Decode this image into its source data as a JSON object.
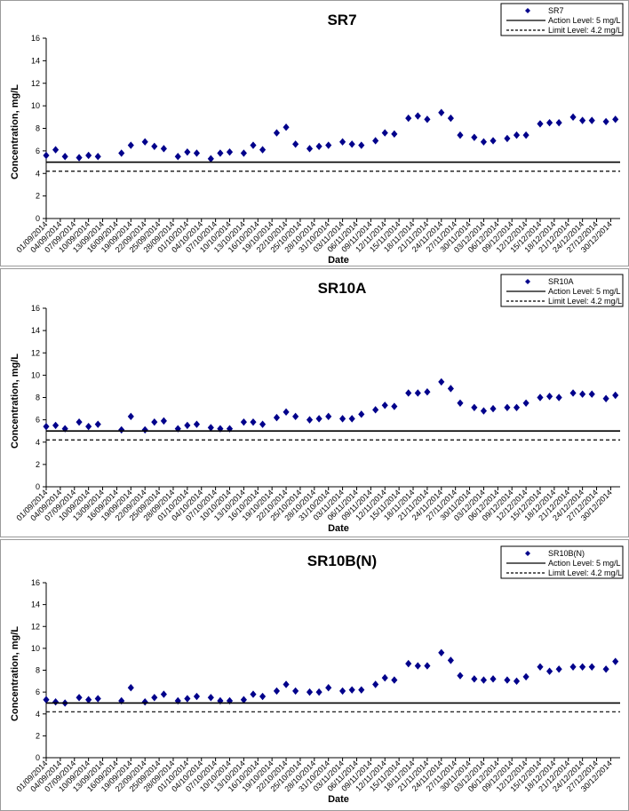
{
  "chart_data": [
    {
      "type": "scatter",
      "title": "SR7",
      "xlabel": "Date",
      "ylabel": "Concentration, mg/L",
      "ylim": [
        0,
        16
      ],
      "yticks": [
        "0",
        "2",
        "4",
        "6",
        "8",
        "10",
        "12",
        "14",
        "16"
      ],
      "xlim": [
        "01/09/2014",
        "01/01/2015"
      ],
      "xticks": [
        "01/09/2014",
        "04/09/2014",
        "07/09/2014",
        "10/09/2014",
        "13/09/2014",
        "16/09/2014",
        "19/09/2014",
        "22/09/2014",
        "25/09/2014",
        "28/09/2014",
        "01/10/2014",
        "04/10/2014",
        "07/10/2014",
        "10/10/2014",
        "13/10/2014",
        "16/10/2014",
        "19/10/2014",
        "22/10/2014",
        "25/10/2014",
        "28/10/2014",
        "31/10/2014",
        "03/11/2014",
        "06/11/2014",
        "09/11/2014",
        "12/11/2014",
        "15/11/2014",
        "18/11/2014",
        "21/11/2014",
        "24/11/2014",
        "27/11/2014",
        "30/11/2014",
        "03/12/2014",
        "06/12/2014",
        "09/12/2014",
        "12/12/2014",
        "15/12/2014",
        "18/12/2014",
        "21/12/2014",
        "24/12/2014",
        "27/12/2014",
        "30/12/2014"
      ],
      "grid": false,
      "legend_position": "top-right",
      "series": [
        {
          "name": "SR7",
          "kind": "scatter",
          "color": "#00008b",
          "marker": "diamond",
          "x": [
            "01/09/2014",
            "03/09/2014",
            "05/09/2014",
            "08/09/2014",
            "10/09/2014",
            "12/09/2014",
            "17/09/2014",
            "19/09/2014",
            "22/09/2014",
            "24/09/2014",
            "26/09/2014",
            "29/09/2014",
            "01/10/2014",
            "03/10/2014",
            "06/10/2014",
            "08/10/2014",
            "10/10/2014",
            "13/10/2014",
            "15/10/2014",
            "17/10/2014",
            "20/10/2014",
            "22/10/2014",
            "24/10/2014",
            "27/10/2014",
            "29/10/2014",
            "31/10/2014",
            "03/11/2014",
            "05/11/2014",
            "07/11/2014",
            "10/11/2014",
            "12/11/2014",
            "14/11/2014",
            "17/11/2014",
            "19/11/2014",
            "21/11/2014",
            "24/11/2014",
            "26/11/2014",
            "28/11/2014",
            "01/12/2014",
            "03/12/2014",
            "05/12/2014",
            "08/12/2014",
            "10/12/2014",
            "12/12/2014",
            "15/12/2014",
            "17/12/2014",
            "19/12/2014",
            "22/12/2014",
            "24/12/2014",
            "26/12/2014",
            "29/12/2014",
            "31/12/2014"
          ],
          "y": [
            5.6,
            6.1,
            5.5,
            5.4,
            5.6,
            5.5,
            5.8,
            6.5,
            6.8,
            6.4,
            6.2,
            5.5,
            5.9,
            5.8,
            5.3,
            5.8,
            5.9,
            5.8,
            6.5,
            6.1,
            7.6,
            8.1,
            6.6,
            6.2,
            6.4,
            6.5,
            6.8,
            6.6,
            6.5,
            6.9,
            7.6,
            7.5,
            8.9,
            9.1,
            8.8,
            9.4,
            8.9,
            7.4,
            7.2,
            6.8,
            6.9,
            7.1,
            7.4,
            7.4,
            8.4,
            8.5,
            8.5,
            9.0,
            8.7,
            8.7,
            8.6,
            8.8
          ]
        },
        {
          "name": "Action Level: 5 mg/L",
          "kind": "line",
          "style": "solid",
          "color": "#000000",
          "value": 5
        },
        {
          "name": "Limit Level: 4.2 mg/L",
          "kind": "line",
          "style": "dashed",
          "color": "#000000",
          "value": 4.2
        }
      ]
    },
    {
      "type": "scatter",
      "title": "SR10A",
      "xlabel": "Date",
      "ylabel": "Concentration, mg/L",
      "ylim": [
        0,
        16
      ],
      "yticks": [
        "0",
        "2",
        "4",
        "6",
        "8",
        "10",
        "12",
        "14",
        "16"
      ],
      "xlim": [
        "01/09/2014",
        "01/01/2015"
      ],
      "xticks": [
        "01/09/2014",
        "04/09/2014",
        "07/09/2014",
        "10/09/2014",
        "13/09/2014",
        "16/09/2014",
        "19/09/2014",
        "22/09/2014",
        "25/09/2014",
        "28/09/2014",
        "01/10/2014",
        "04/10/2014",
        "07/10/2014",
        "10/10/2014",
        "13/10/2014",
        "16/10/2014",
        "19/10/2014",
        "22/10/2014",
        "25/10/2014",
        "28/10/2014",
        "31/10/2014",
        "03/11/2014",
        "06/11/2014",
        "09/11/2014",
        "12/11/2014",
        "15/11/2014",
        "18/11/2014",
        "21/11/2014",
        "24/11/2014",
        "27/11/2014",
        "30/11/2014",
        "03/12/2014",
        "06/12/2014",
        "09/12/2014",
        "12/12/2014",
        "15/12/2014",
        "18/12/2014",
        "21/12/2014",
        "24/12/2014",
        "27/12/2014",
        "30/12/2014"
      ],
      "grid": false,
      "legend_position": "top-right",
      "series": [
        {
          "name": "SR10A",
          "kind": "scatter",
          "color": "#00008b",
          "marker": "diamond",
          "x": [
            "01/09/2014",
            "03/09/2014",
            "05/09/2014",
            "08/09/2014",
            "10/09/2014",
            "12/09/2014",
            "17/09/2014",
            "19/09/2014",
            "22/09/2014",
            "24/09/2014",
            "26/09/2014",
            "29/09/2014",
            "01/10/2014",
            "03/10/2014",
            "06/10/2014",
            "08/10/2014",
            "10/10/2014",
            "13/10/2014",
            "15/10/2014",
            "17/10/2014",
            "20/10/2014",
            "22/10/2014",
            "24/10/2014",
            "27/10/2014",
            "29/10/2014",
            "31/10/2014",
            "03/11/2014",
            "05/11/2014",
            "07/11/2014",
            "10/11/2014",
            "12/11/2014",
            "14/11/2014",
            "17/11/2014",
            "19/11/2014",
            "21/11/2014",
            "24/11/2014",
            "26/11/2014",
            "28/11/2014",
            "01/12/2014",
            "03/12/2014",
            "05/12/2014",
            "08/12/2014",
            "10/12/2014",
            "12/12/2014",
            "15/12/2014",
            "17/12/2014",
            "19/12/2014",
            "22/12/2014",
            "24/12/2014",
            "26/12/2014",
            "29/12/2014",
            "31/12/2014"
          ],
          "y": [
            5.4,
            5.5,
            5.2,
            5.8,
            5.4,
            5.6,
            5.1,
            6.3,
            5.1,
            5.8,
            5.9,
            5.2,
            5.5,
            5.6,
            5.3,
            5.2,
            5.2,
            5.8,
            5.8,
            5.6,
            6.2,
            6.7,
            6.3,
            6.0,
            6.1,
            6.3,
            6.1,
            6.1,
            6.5,
            6.9,
            7.3,
            7.2,
            8.4,
            8.4,
            8.5,
            9.4,
            8.8,
            7.5,
            7.1,
            6.8,
            7.0,
            7.1,
            7.1,
            7.5,
            8.0,
            8.1,
            8.0,
            8.4,
            8.3,
            8.3,
            7.9,
            8.2
          ]
        },
        {
          "name": "Action Level: 5 mg/L",
          "kind": "line",
          "style": "solid",
          "color": "#000000",
          "value": 5
        },
        {
          "name": "Limit Level: 4.2 mg/L",
          "kind": "line",
          "style": "dashed",
          "color": "#000000",
          "value": 4.2
        }
      ]
    },
    {
      "type": "scatter",
      "title": "SR10B(N)",
      "xlabel": "Date",
      "ylabel": "Concentration, mg/L",
      "ylim": [
        0,
        16
      ],
      "yticks": [
        "0",
        "2",
        "4",
        "6",
        "8",
        "10",
        "12",
        "14",
        "16"
      ],
      "xlim": [
        "01/09/2014",
        "01/01/2015"
      ],
      "xticks": [
        "01/09/2014",
        "04/09/2014",
        "07/09/2014",
        "10/09/2014",
        "13/09/2014",
        "16/09/2014",
        "19/09/2014",
        "22/09/2014",
        "25/09/2014",
        "28/09/2014",
        "01/10/2014",
        "04/10/2014",
        "07/10/2014",
        "10/10/2014",
        "13/10/2014",
        "16/10/2014",
        "19/10/2014",
        "22/10/2014",
        "25/10/2014",
        "28/10/2014",
        "31/10/2014",
        "03/11/2014",
        "06/11/2014",
        "09/11/2014",
        "12/11/2014",
        "15/11/2014",
        "18/11/2014",
        "21/11/2014",
        "24/11/2014",
        "27/11/2014",
        "30/11/2014",
        "03/12/2014",
        "06/12/2014",
        "09/12/2014",
        "12/12/2014",
        "15/12/2014",
        "18/12/2014",
        "21/12/2014",
        "24/12/2014",
        "27/12/2014",
        "30/12/2014"
      ],
      "grid": false,
      "legend_position": "top-right",
      "series": [
        {
          "name": "SR10B(N)",
          "kind": "scatter",
          "color": "#00008b",
          "marker": "diamond",
          "x": [
            "01/09/2014",
            "03/09/2014",
            "05/09/2014",
            "08/09/2014",
            "10/09/2014",
            "12/09/2014",
            "17/09/2014",
            "19/09/2014",
            "22/09/2014",
            "24/09/2014",
            "26/09/2014",
            "29/09/2014",
            "01/10/2014",
            "03/10/2014",
            "06/10/2014",
            "08/10/2014",
            "10/10/2014",
            "13/10/2014",
            "15/10/2014",
            "17/10/2014",
            "20/10/2014",
            "22/10/2014",
            "24/10/2014",
            "27/10/2014",
            "29/10/2014",
            "31/10/2014",
            "03/11/2014",
            "05/11/2014",
            "07/11/2014",
            "10/11/2014",
            "12/11/2014",
            "14/11/2014",
            "17/11/2014",
            "19/11/2014",
            "21/11/2014",
            "24/11/2014",
            "26/11/2014",
            "28/11/2014",
            "01/12/2014",
            "03/12/2014",
            "05/12/2014",
            "08/12/2014",
            "10/12/2014",
            "12/12/2014",
            "15/12/2014",
            "17/12/2014",
            "19/12/2014",
            "22/12/2014",
            "24/12/2014",
            "26/12/2014",
            "29/12/2014",
            "31/12/2014"
          ],
          "y": [
            5.3,
            5.1,
            5.0,
            5.5,
            5.3,
            5.4,
            5.2,
            6.4,
            5.1,
            5.5,
            5.8,
            5.2,
            5.4,
            5.6,
            5.5,
            5.2,
            5.2,
            5.3,
            5.8,
            5.6,
            6.1,
            6.7,
            6.1,
            6.0,
            6.0,
            6.4,
            6.1,
            6.2,
            6.2,
            6.7,
            7.3,
            7.1,
            8.6,
            8.4,
            8.4,
            9.6,
            8.9,
            7.5,
            7.2,
            7.1,
            7.2,
            7.1,
            7.0,
            7.4,
            8.3,
            7.9,
            8.1,
            8.3,
            8.3,
            8.3,
            8.1,
            8.8
          ]
        },
        {
          "name": "Action Level: 5 mg/L",
          "kind": "line",
          "style": "solid",
          "color": "#000000",
          "value": 5
        },
        {
          "name": "Limit Level: 4.2 mg/L",
          "kind": "line",
          "style": "dashed",
          "color": "#000000",
          "value": 4.2
        }
      ]
    }
  ]
}
